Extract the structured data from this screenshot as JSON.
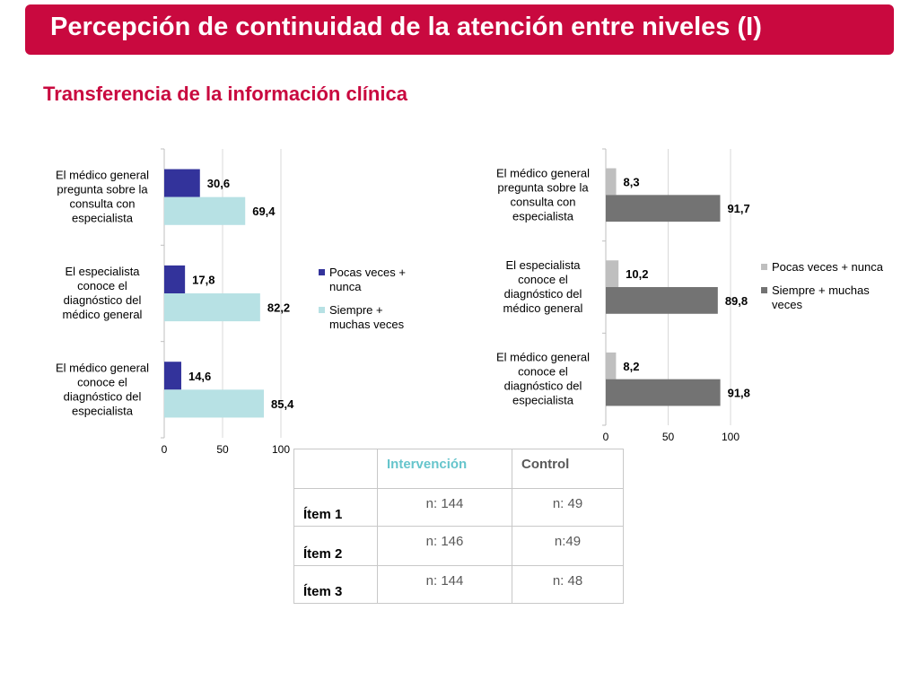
{
  "header": {
    "title": "Percepción de continuidad de la atención entre niveles  (I)",
    "subtitle": "Transferencia de la información clínica"
  },
  "chart_data": [
    {
      "type": "bar",
      "orientation": "horizontal",
      "categories": [
        "El médico general pregunta sobre la consulta con especialista",
        "El especialista conoce el diagnóstico del médico general",
        "El médico general conoce el diagnóstico del especialista"
      ],
      "series": [
        {
          "name": "Pocas veces + nunca",
          "values": [
            30.6,
            17.8,
            14.6
          ],
          "labels": [
            "30,6",
            "17,8",
            "14,6"
          ],
          "color": "#33339b"
        },
        {
          "name": "Siempre + muchas veces",
          "values": [
            69.4,
            82.2,
            85.4
          ],
          "labels": [
            "69,4",
            "82,2",
            "85,4"
          ],
          "color": "#b7e1e4"
        }
      ],
      "xlim": [
        0,
        100
      ],
      "xticks": [
        "0",
        "50",
        "100"
      ],
      "grid": true,
      "legend": "right"
    },
    {
      "type": "bar",
      "orientation": "horizontal",
      "categories": [
        "El médico general pregunta sobre la consulta con especialista",
        "El especialista conoce el diagnóstico del médico general",
        "El médico general conoce el diagnóstico del especialista"
      ],
      "series": [
        {
          "name": "Pocas veces + nunca",
          "values": [
            8.3,
            10.2,
            8.2
          ],
          "labels": [
            "8,3",
            "10,2",
            "8,2"
          ],
          "color": "#bfbfbf"
        },
        {
          "name": "Siempre + muchas veces",
          "values": [
            91.7,
            89.8,
            91.8
          ],
          "labels": [
            "91,7",
            "89,8",
            "91,8"
          ],
          "color": "#737373"
        }
      ],
      "xlim": [
        0,
        100
      ],
      "xticks": [
        "0",
        "50",
        "100"
      ],
      "grid": true,
      "legend": "right"
    }
  ],
  "table": {
    "headers": [
      "",
      "Intervención",
      "Control"
    ],
    "header_colors": [
      "#000000",
      "#66c5cc",
      "#595959"
    ],
    "rows": [
      {
        "item": "Ítem 1",
        "intervencion": "n: 144",
        "control": "n: 49"
      },
      {
        "item": "Ítem 2",
        "intervencion": "n: 146",
        "control": "n:49"
      },
      {
        "item": "Ítem 3",
        "intervencion": "n: 144",
        "control": "n: 48"
      }
    ]
  }
}
